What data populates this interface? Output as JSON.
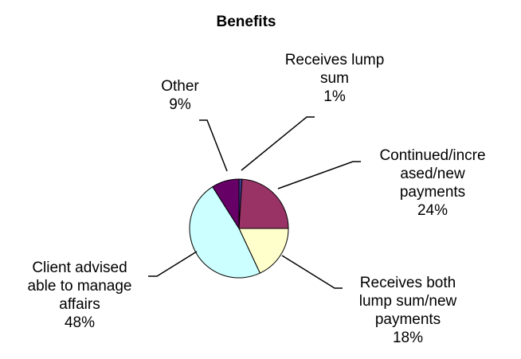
{
  "chart_data": {
    "type": "pie",
    "title": "Benefits",
    "slices": [
      {
        "name": "Receives lump sum",
        "label_lines": [
          "Receives lump",
          "sum",
          "1%"
        ],
        "value": 1,
        "color": "#3b3b8f"
      },
      {
        "name": "Continued/increased/new payments",
        "label_lines": [
          "Continued/incre",
          "ased/new",
          "payments",
          "24%"
        ],
        "value": 24,
        "color": "#993366"
      },
      {
        "name": "Receives both lump sum/new payments",
        "label_lines": [
          "Receives both",
          "lump sum/new",
          "payments",
          "18%"
        ],
        "value": 18,
        "color": "#ffffcc"
      },
      {
        "name": "Client advised able to manage affairs",
        "label_lines": [
          "Client advised",
          "able to manage",
          "affairs",
          "48%"
        ],
        "value": 48,
        "color": "#ccffff"
      },
      {
        "name": "Other",
        "label_lines": [
          "Other",
          "9%"
        ],
        "value": 9,
        "color": "#660066"
      }
    ],
    "legend": "none"
  }
}
